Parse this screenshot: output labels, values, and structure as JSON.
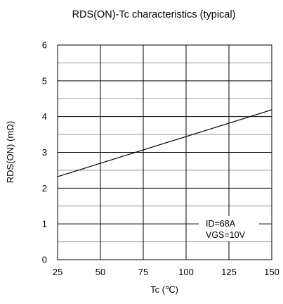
{
  "chart_data": {
    "type": "line",
    "title": "RDS(ON)-Tc characteristics (typical)",
    "xlabel": "Tc (℃)",
    "ylabel": "RDS(ON) (mΩ)",
    "xlim": [
      25,
      150
    ],
    "ylim": [
      0,
      6
    ],
    "xticks": [
      25,
      50,
      75,
      100,
      125,
      150
    ],
    "yticks": [
      0,
      1,
      2,
      3,
      4,
      5,
      6
    ],
    "grid": true,
    "series": [
      {
        "x": [
          25,
          150
        ],
        "y": [
          2.32,
          4.19
        ]
      }
    ],
    "annotations": [
      "ID=68A",
      "VGS=10V"
    ],
    "colors": {
      "line": "#000000",
      "major_grid": "#000000",
      "minor_grid": "#999999"
    }
  }
}
